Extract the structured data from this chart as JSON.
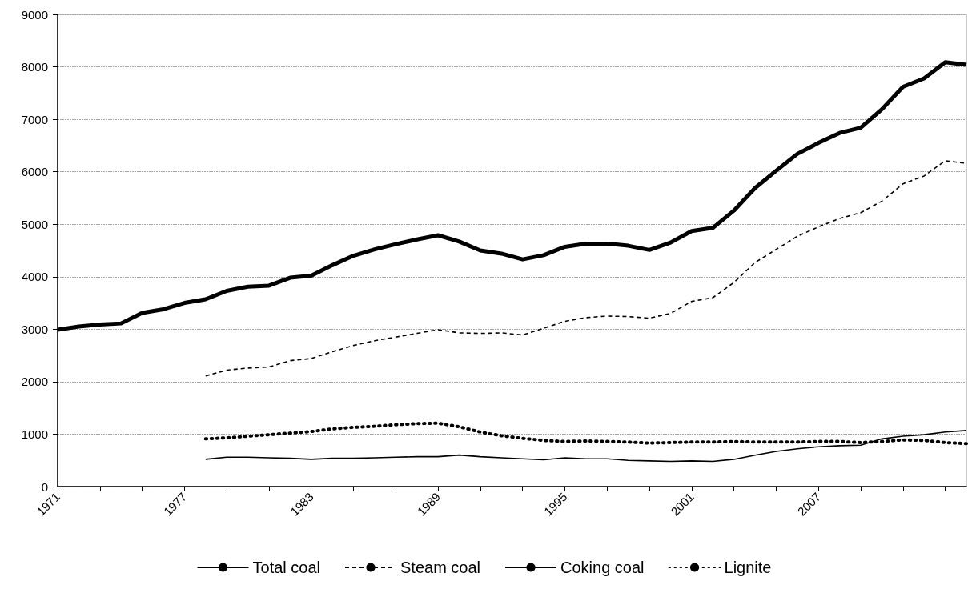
{
  "chart_data": {
    "type": "line",
    "categories": [
      "1971",
      null,
      null,
      null,
      null,
      null,
      "1977",
      null,
      null,
      null,
      null,
      null,
      "1983",
      null,
      null,
      null,
      null,
      null,
      "1989",
      null,
      null,
      null,
      null,
      null,
      "1995",
      null,
      null,
      null,
      null,
      null,
      "2001",
      null,
      null,
      null,
      null,
      null,
      "2007",
      null,
      null,
      null,
      null,
      null,
      null,
      null
    ],
    "series": [
      {
        "name": "Total coal",
        "color": "#000000",
        "line_style": "solid",
        "values": [
          2990,
          3050,
          3090,
          3110,
          3310,
          3380,
          3500,
          3570,
          3730,
          3810,
          3830,
          3980,
          4020,
          4220,
          4400,
          4520,
          4620,
          4710,
          4790,
          4670,
          4500,
          4440,
          4330,
          4410,
          4570,
          4630,
          4630,
          4590,
          4510,
          4650,
          4870,
          4930,
          5260,
          5690,
          6020,
          6340,
          6550,
          6740,
          6840,
          7190,
          7620,
          7780,
          8090,
          8040
        ]
      },
      {
        "name": "Steam coal",
        "color": "#000000",
        "line_style": "dashed",
        "values": [
          null,
          null,
          null,
          null,
          null,
          null,
          null,
          2110,
          2220,
          2260,
          2280,
          2400,
          2440,
          2570,
          2690,
          2780,
          2850,
          2920,
          2990,
          2930,
          2920,
          2930,
          2890,
          3020,
          3150,
          3220,
          3250,
          3240,
          3210,
          3300,
          3530,
          3600,
          3890,
          4270,
          4520,
          4770,
          4950,
          5110,
          5220,
          5440,
          5770,
          5920,
          6210,
          6160
        ]
      },
      {
        "name": "Coking coal",
        "color": "#000000",
        "line_style": "solid",
        "values": [
          null,
          null,
          null,
          null,
          null,
          null,
          null,
          520,
          560,
          560,
          550,
          540,
          520,
          540,
          540,
          550,
          560,
          570,
          570,
          600,
          570,
          550,
          530,
          510,
          550,
          530,
          530,
          500,
          490,
          480,
          490,
          480,
          520,
          600,
          670,
          720,
          760,
          780,
          790,
          910,
          960,
          990,
          1040,
          1070
        ]
      },
      {
        "name": "Lignite",
        "color": "#000000",
        "line_style": "dotted",
        "values": [
          null,
          null,
          null,
          null,
          null,
          null,
          null,
          910,
          930,
          960,
          990,
          1020,
          1050,
          1100,
          1130,
          1150,
          1180,
          1200,
          1210,
          1140,
          1040,
          970,
          920,
          880,
          860,
          870,
          860,
          850,
          830,
          840,
          850,
          850,
          860,
          850,
          850,
          850,
          860,
          860,
          840,
          860,
          890,
          880,
          840,
          820
        ]
      }
    ],
    "ylim": [
      0,
      9000
    ],
    "yticks": [
      0,
      1000,
      2000,
      3000,
      4000,
      5000,
      6000,
      7000,
      8000,
      9000
    ],
    "grid": "y",
    "legend": "bottom",
    "marker": "none"
  }
}
